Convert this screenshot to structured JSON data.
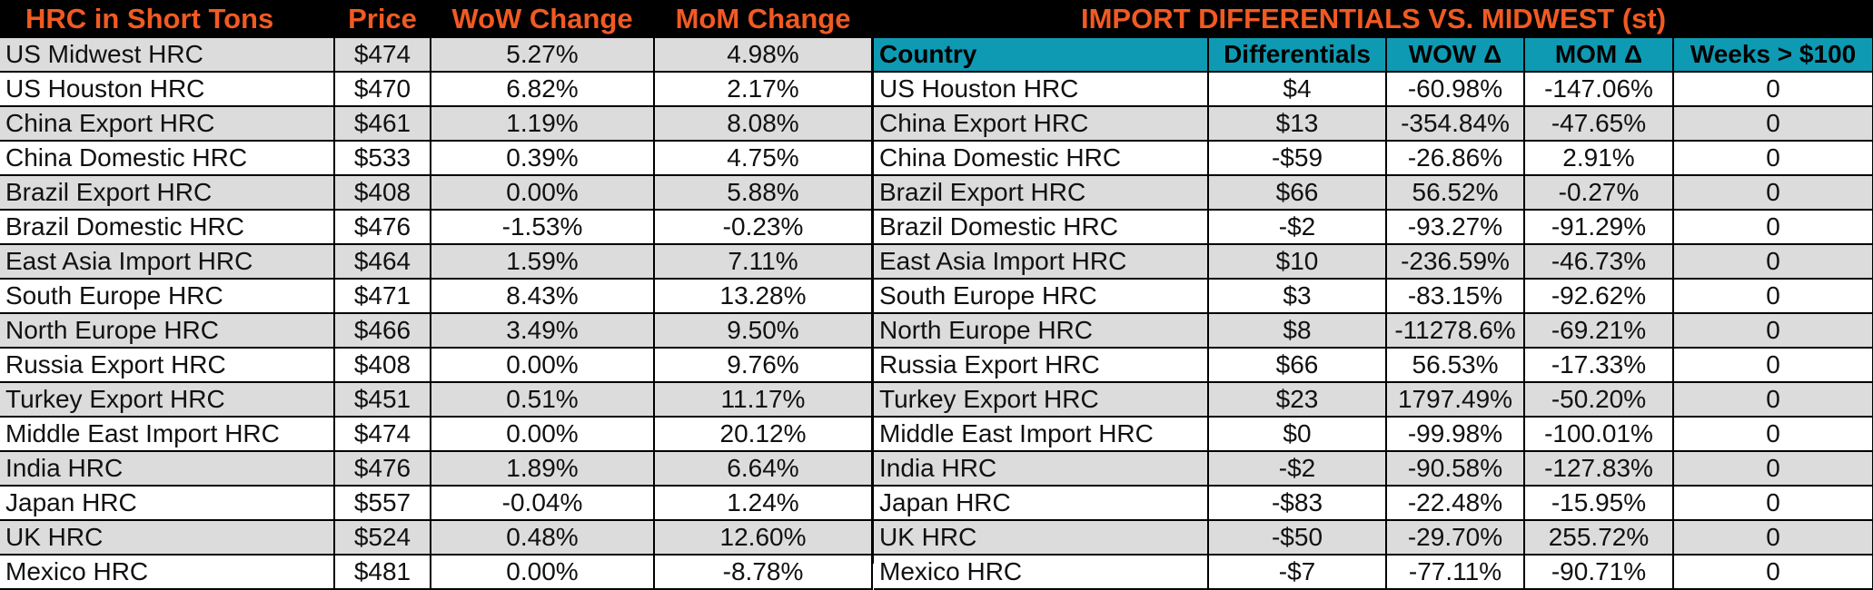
{
  "left_table": {
    "headers": [
      "HRC in Short Tons",
      "Price",
      "WoW Change",
      "MoM Change"
    ],
    "rows": [
      [
        "US Midwest HRC",
        "$474",
        "5.27%",
        "4.98%"
      ],
      [
        "US Houston HRC",
        "$470",
        "6.82%",
        "2.17%"
      ],
      [
        "China Export HRC",
        "$461",
        "1.19%",
        "8.08%"
      ],
      [
        "China Domestic HRC",
        "$533",
        "0.39%",
        "4.75%"
      ],
      [
        "Brazil Export HRC",
        "$408",
        "0.00%",
        "5.88%"
      ],
      [
        "Brazil Domestic HRC",
        "$476",
        "-1.53%",
        "-0.23%"
      ],
      [
        "East Asia Import HRC",
        "$464",
        "1.59%",
        "7.11%"
      ],
      [
        "South Europe HRC",
        "$471",
        "8.43%",
        "13.28%"
      ],
      [
        "North Europe HRC",
        "$466",
        "3.49%",
        "9.50%"
      ],
      [
        "Russia Export HRC",
        "$408",
        "0.00%",
        "9.76%"
      ],
      [
        "Turkey Export HRC",
        "$451",
        "0.51%",
        "11.17%"
      ],
      [
        "Middle East Import HRC",
        "$474",
        "0.00%",
        "20.12%"
      ],
      [
        "India HRC",
        "$476",
        "1.89%",
        "6.64%"
      ],
      [
        "Japan HRC",
        "$557",
        "-0.04%",
        "1.24%"
      ],
      [
        "UK HRC",
        "$524",
        "0.48%",
        "12.60%"
      ],
      [
        "Mexico HRC",
        "$481",
        "0.00%",
        "-8.78%"
      ]
    ]
  },
  "right_table": {
    "title": "IMPORT DIFFERENTIALS VS. MIDWEST (st)",
    "headers": [
      "Country",
      "Differentials",
      "WOW Δ",
      "MOM Δ",
      "Weeks > $100"
    ],
    "rows": [
      [
        "US Houston HRC",
        "$4",
        "-60.98%",
        "-147.06%",
        "0"
      ],
      [
        "China Export HRC",
        "$13",
        "-354.84%",
        "-47.65%",
        "0"
      ],
      [
        "China Domestic HRC",
        "-$59",
        "-26.86%",
        "2.91%",
        "0"
      ],
      [
        "Brazil Export HRC",
        "$66",
        "56.52%",
        "-0.27%",
        "0"
      ],
      [
        "Brazil Domestic HRC",
        "-$2",
        "-93.27%",
        "-91.29%",
        "0"
      ],
      [
        "East Asia Import HRC",
        "$10",
        "-236.59%",
        "-46.73%",
        "0"
      ],
      [
        "South Europe HRC",
        "$3",
        "-83.15%",
        "-92.62%",
        "0"
      ],
      [
        "North Europe HRC",
        "$8",
        "-11278.6%",
        "-69.21%",
        "0"
      ],
      [
        "Russia Export HRC",
        "$66",
        "56.53%",
        "-17.33%",
        "0"
      ],
      [
        "Turkey Export HRC",
        "$23",
        "1797.49%",
        "-50.20%",
        "0"
      ],
      [
        "Middle East Import HRC",
        "$0",
        "-99.98%",
        "-100.01%",
        "0"
      ],
      [
        "India HRC",
        "-$2",
        "-90.58%",
        "-127.83%",
        "0"
      ],
      [
        "Japan HRC",
        "-$83",
        "-22.48%",
        "-15.95%",
        "0"
      ],
      [
        "UK HRC",
        "-$50",
        "-29.70%",
        "255.72%",
        "0"
      ],
      [
        "Mexico HRC",
        "-$7",
        "-77.11%",
        "-90.71%",
        "0"
      ]
    ]
  },
  "colors": {
    "header_background": "#000000",
    "header_text": "#f15a22",
    "column_header_background": "#0e9ab2",
    "shaded_row": "#dcdcdc",
    "plain_row": "#ffffff"
  }
}
